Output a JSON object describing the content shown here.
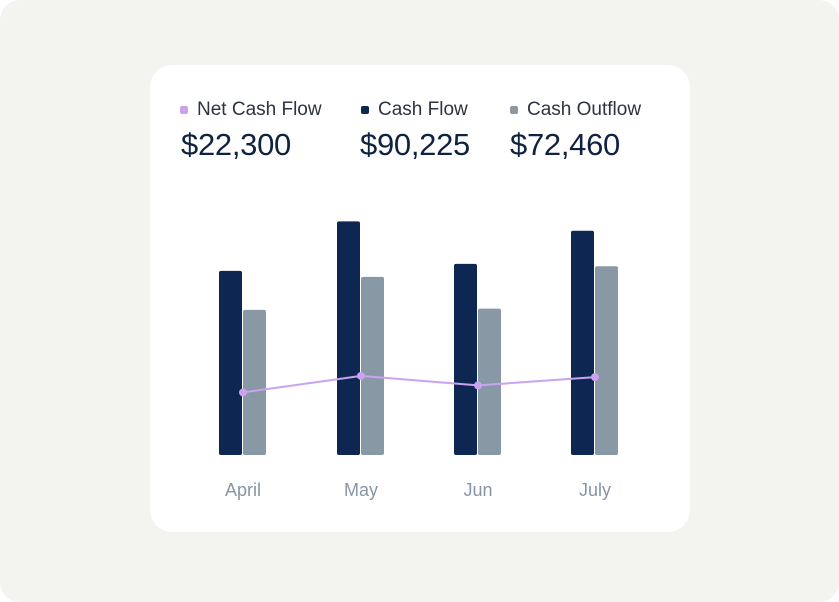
{
  "chart_data": {
    "type": "bar",
    "categories": [
      "April",
      "May",
      "Jun",
      "July"
    ],
    "series": [
      {
        "name": "Cash Flow",
        "kind": "bar",
        "color": "#0e2752",
        "values": [
          78000,
          99000,
          81000,
          95000
        ]
      },
      {
        "name": "Cash Outflow",
        "kind": "bar",
        "color": "#8998a5",
        "values": [
          61500,
          75500,
          62000,
          80000
        ]
      },
      {
        "name": "Net Cash Flow",
        "kind": "line",
        "color": "#c9a3f0",
        "values": [
          26500,
          33500,
          29500,
          33000
        ]
      }
    ],
    "ylim": [
      0,
      100000
    ],
    "legend": [
      {
        "label": "Net Cash Flow",
        "value": "$22,300",
        "color": "#c9a3f0"
      },
      {
        "label": "Cash Flow",
        "value": "$90,225",
        "color": "#0e2752"
      },
      {
        "label": "Cash Outflow",
        "value": "$72,460",
        "color": "#8998a5"
      }
    ]
  }
}
